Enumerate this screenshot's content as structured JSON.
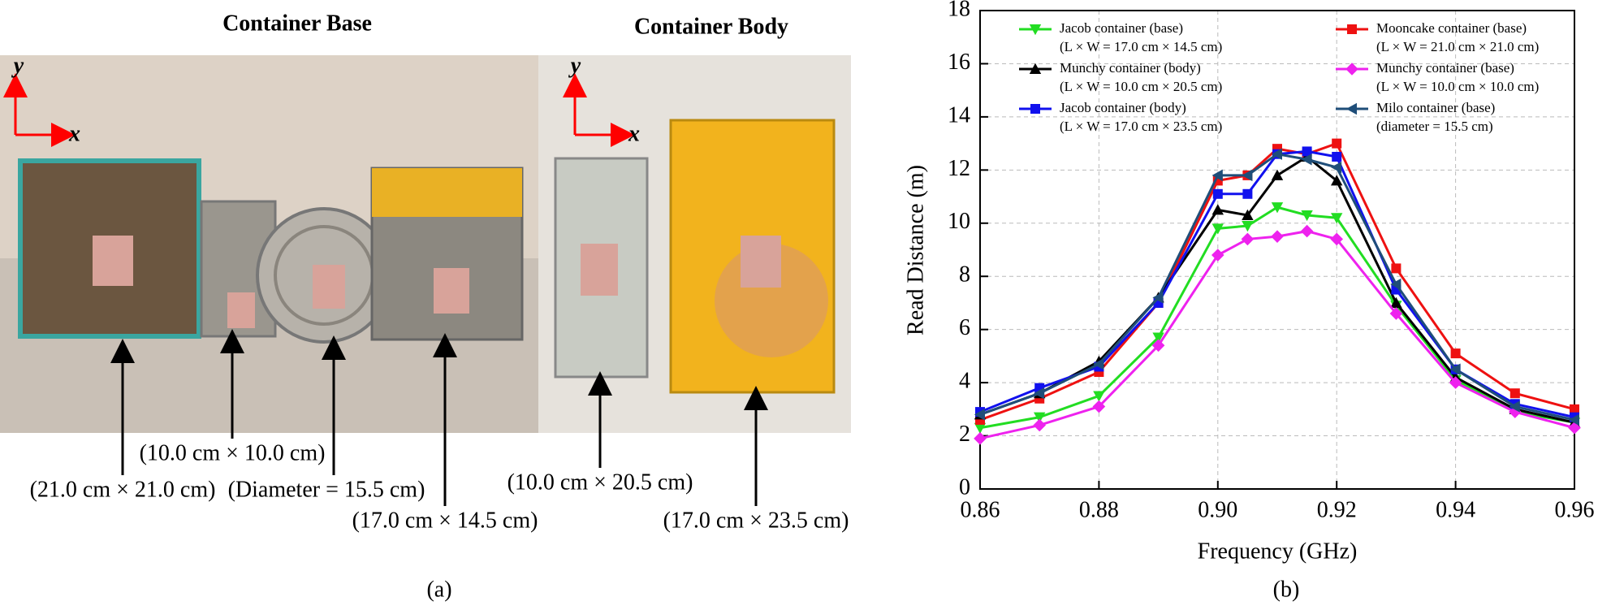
{
  "panel_a": {
    "label": "(a)",
    "titles": [
      "Container Base",
      "Container Body"
    ],
    "axis_x": "x",
    "axis_y": "y",
    "dimensions": [
      "(10.0 cm × 10.0 cm)",
      "(21.0 cm × 21.0 cm)",
      "(Diameter = 15.5 cm)",
      "(17.0 cm × 14.5 cm)",
      "(10.0 cm × 20.5 cm)",
      "(17.0 cm × 23.5 cm)"
    ]
  },
  "chart_data": {
    "type": "line",
    "panel_label": "(b)",
    "x_label": "Frequency (GHz)",
    "y_label": "Read Distance (m)",
    "x": [
      0.86,
      0.87,
      0.88,
      0.89,
      0.9,
      0.905,
      0.91,
      0.915,
      0.92,
      0.93,
      0.94,
      0.95,
      0.96
    ],
    "series": [
      {
        "name": "Jacob container (base)",
        "sub": "(L × W = 17.0 cm × 14.5 cm)",
        "color": "#22dd22",
        "marker": "triangle-down",
        "values": [
          2.3,
          2.7,
          3.5,
          5.7,
          9.8,
          9.9,
          10.6,
          10.3,
          10.2,
          6.9,
          4.1,
          2.9,
          2.5
        ]
      },
      {
        "name": "Mooncake container (base)",
        "sub": "(L × W = 21.0 cm × 21.0 cm)",
        "color": "#ee1111",
        "marker": "square",
        "values": [
          2.6,
          3.4,
          4.4,
          7.0,
          11.6,
          11.8,
          12.8,
          12.6,
          13.0,
          8.3,
          5.1,
          3.6,
          3.0
        ]
      },
      {
        "name": "Munchy container (body)",
        "sub": "(L × W = 10.0 cm × 20.5 cm)",
        "color": "#000000",
        "marker": "triangle-up",
        "values": [
          2.8,
          3.6,
          4.8,
          7.2,
          10.5,
          10.3,
          11.8,
          12.5,
          11.6,
          7.0,
          4.2,
          3.0,
          2.5
        ]
      },
      {
        "name": "Munchy container (base)",
        "sub": "(L × W = 10.0 cm × 10.0 cm)",
        "color": "#ee22ee",
        "marker": "diamond",
        "values": [
          1.9,
          2.4,
          3.1,
          5.4,
          8.8,
          9.4,
          9.5,
          9.7,
          9.4,
          6.6,
          4.0,
          2.9,
          2.3
        ]
      },
      {
        "name": "Jacob container (body)",
        "sub": "(L × W = 17.0 cm × 23.5 cm)",
        "color": "#1111ee",
        "marker": "square",
        "values": [
          2.9,
          3.8,
          4.6,
          7.0,
          11.1,
          11.1,
          12.6,
          12.7,
          12.5,
          7.5,
          4.5,
          3.2,
          2.7
        ]
      },
      {
        "name": "Milo container (base)",
        "sub": "(diameter = 15.5 cm)",
        "color": "#1f4e79",
        "marker": "triangle-left",
        "values": [
          2.8,
          3.6,
          4.7,
          7.2,
          11.8,
          11.8,
          12.6,
          12.4,
          12.1,
          7.7,
          4.5,
          3.1,
          2.6
        ]
      }
    ],
    "xlim": [
      0.86,
      0.96
    ],
    "xticks": [
      0.86,
      0.88,
      {
        "value": 0.9,
        "label": "0.90"
      },
      0.92,
      0.94,
      0.96
    ],
    "ylim": [
      0,
      18
    ],
    "yticks": [
      0,
      2,
      4,
      6,
      8,
      10,
      12,
      14,
      16,
      18
    ],
    "grid": true
  }
}
